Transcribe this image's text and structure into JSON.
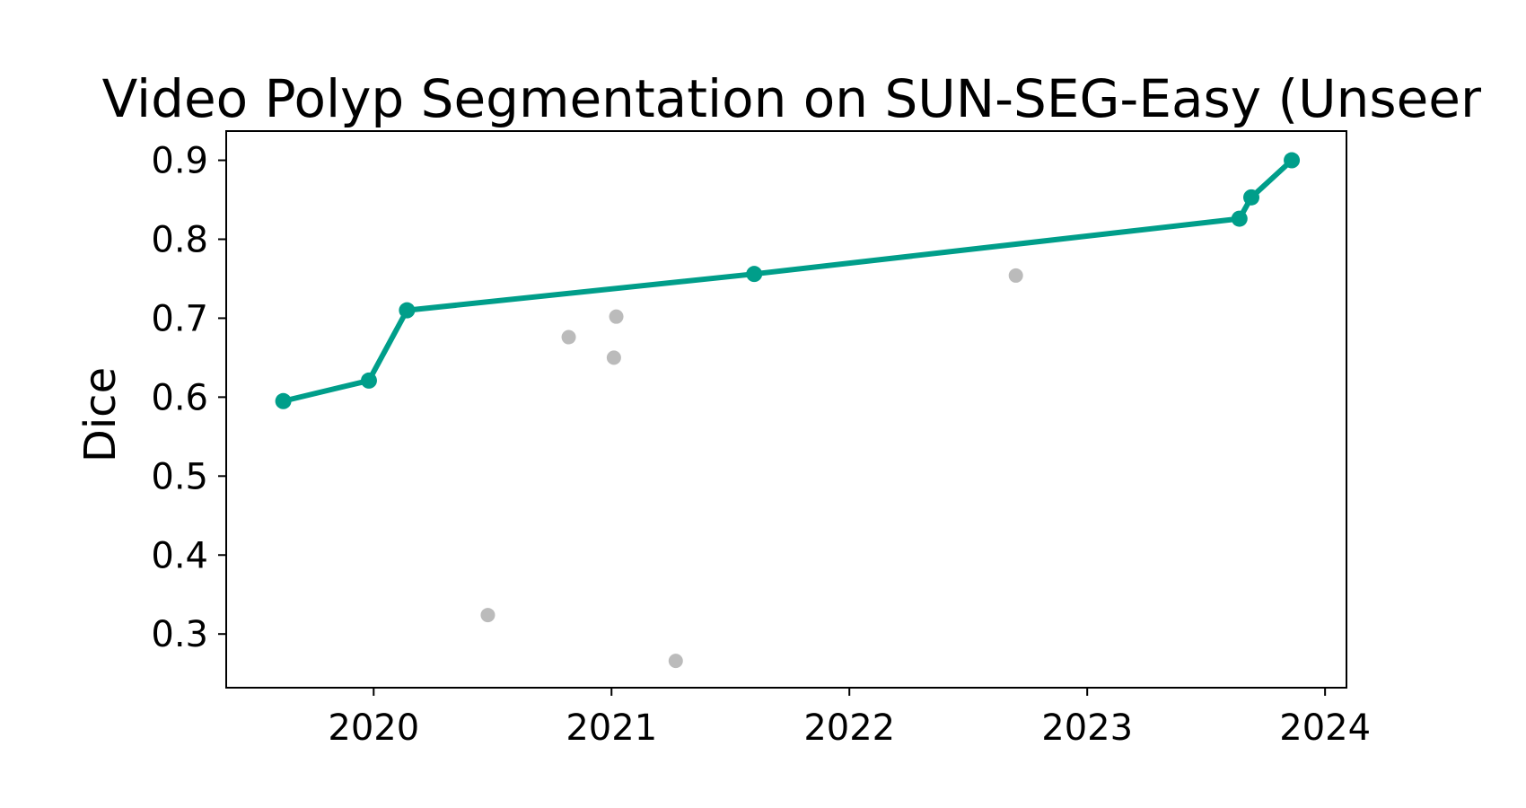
{
  "chart_data": {
    "type": "line",
    "title": "Video Polyp Segmentation on SUN-SEG-Easy (Unseen)",
    "xlabel": "",
    "ylabel": "Dice",
    "x_scale": "date",
    "xlim": [
      2019.38,
      2024.09
    ],
    "ylim": [
      0.232,
      0.937
    ],
    "xticks": [
      2020,
      2021,
      2022,
      2023,
      2024
    ],
    "xtick_labels": [
      "2020",
      "2021",
      "2022",
      "2023",
      "2024"
    ],
    "yticks": [
      0.3,
      0.4,
      0.5,
      0.6,
      0.7,
      0.8,
      0.9
    ],
    "ytick_labels": [
      "0.3",
      "0.4",
      "0.5",
      "0.6",
      "0.7",
      "0.8",
      "0.9"
    ],
    "grid": false,
    "series": [
      {
        "role": "state-of-the-art frontier",
        "color": "#009e8a",
        "style": "line-with-markers",
        "points": [
          {
            "x": 2019.62,
            "y": 0.595
          },
          {
            "x": 2019.98,
            "y": 0.621
          },
          {
            "x": 2020.14,
            "y": 0.71
          },
          {
            "x": 2021.6,
            "y": 0.756
          },
          {
            "x": 2023.64,
            "y": 0.826
          },
          {
            "x": 2023.69,
            "y": 0.853
          },
          {
            "x": 2023.86,
            "y": 0.9
          }
        ]
      },
      {
        "role": "other methods",
        "color": "#bbbbbb",
        "style": "scatter",
        "points": [
          {
            "x": 2020.48,
            "y": 0.324
          },
          {
            "x": 2020.82,
            "y": 0.676
          },
          {
            "x": 2021.01,
            "y": 0.65
          },
          {
            "x": 2021.02,
            "y": 0.702
          },
          {
            "x": 2021.27,
            "y": 0.266
          },
          {
            "x": 2022.7,
            "y": 0.754
          }
        ]
      }
    ]
  }
}
